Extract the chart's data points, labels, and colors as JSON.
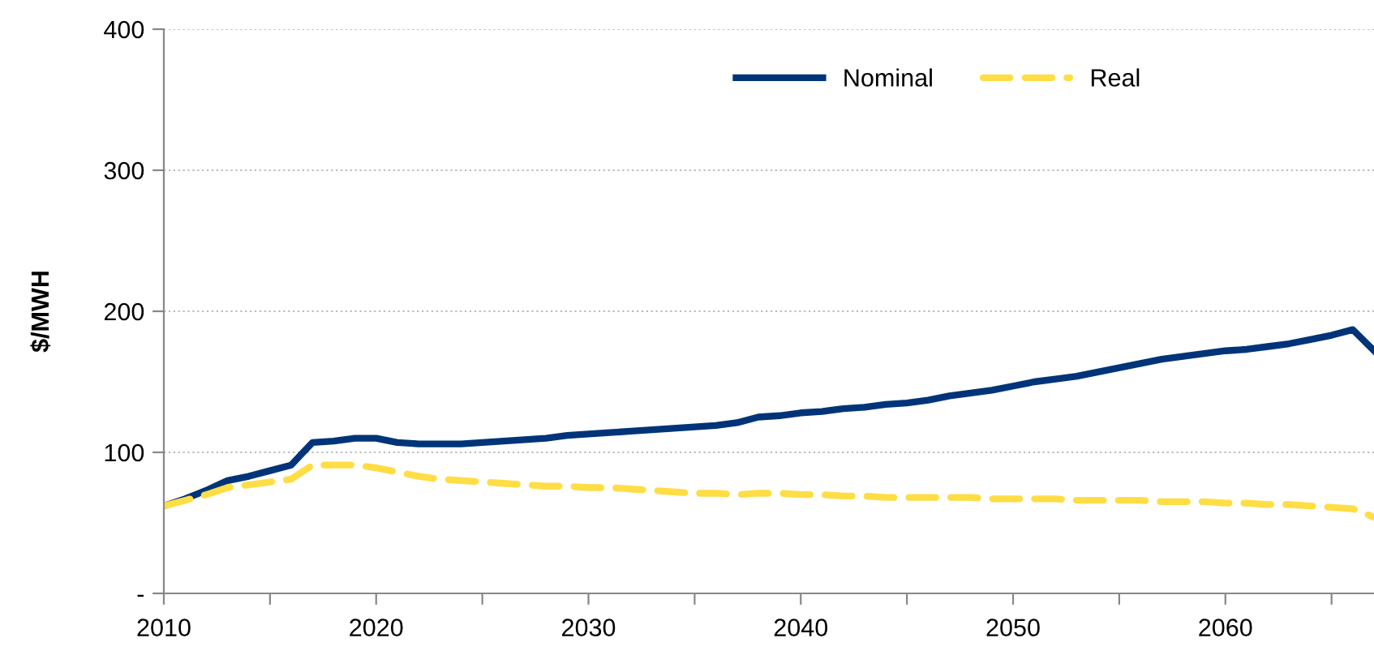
{
  "chart_data": {
    "type": "line",
    "ylabel": "$/MWH",
    "x": [
      2010,
      2011,
      2012,
      2013,
      2014,
      2015,
      2016,
      2017,
      2018,
      2019,
      2020,
      2021,
      2022,
      2023,
      2024,
      2025,
      2026,
      2027,
      2028,
      2029,
      2030,
      2031,
      2032,
      2033,
      2034,
      2035,
      2036,
      2037,
      2038,
      2039,
      2040,
      2041,
      2042,
      2043,
      2044,
      2045,
      2046,
      2047,
      2048,
      2049,
      2050,
      2051,
      2052,
      2053,
      2054,
      2055,
      2056,
      2057,
      2058,
      2059,
      2060,
      2061,
      2062,
      2063,
      2064,
      2065,
      2066,
      2067
    ],
    "series": [
      {
        "name": "Nominal",
        "color": "#003478",
        "line_style": "solid",
        "values": [
          62,
          67,
          73,
          80,
          83,
          87,
          91,
          107,
          108,
          110,
          110,
          107,
          106,
          106,
          106,
          107,
          108,
          109,
          110,
          112,
          113,
          114,
          115,
          116,
          117,
          118,
          119,
          121,
          125,
          126,
          128,
          129,
          131,
          132,
          134,
          135,
          137,
          140,
          142,
          144,
          147,
          150,
          152,
          154,
          157,
          160,
          163,
          166,
          168,
          170,
          172,
          173,
          175,
          177,
          180,
          183,
          187,
          172
        ]
      },
      {
        "name": "Real",
        "color": "#ffdd44",
        "line_style": "dashed",
        "values": [
          62,
          66,
          70,
          75,
          77,
          79,
          81,
          91,
          91,
          91,
          89,
          86,
          83,
          81,
          80,
          79,
          78,
          77,
          76,
          76,
          75,
          75,
          74,
          73,
          72,
          71,
          71,
          70,
          71,
          71,
          70,
          70,
          69,
          69,
          68,
          68,
          68,
          68,
          68,
          67,
          67,
          67,
          67,
          66,
          66,
          66,
          66,
          65,
          65,
          65,
          64,
          64,
          63,
          63,
          62,
          61,
          60,
          54
        ]
      }
    ],
    "xlim": [
      2010,
      2067
    ],
    "xticks": [
      2010,
      {
        "value": 2015,
        "label": null
      },
      2020,
      {
        "value": 2025,
        "label": null
      },
      2030,
      {
        "value": 2035,
        "label": null
      },
      2040,
      {
        "value": 2045,
        "label": null
      },
      2050,
      {
        "value": 2055,
        "label": null
      },
      2060,
      {
        "value": 2065,
        "label": null
      }
    ],
    "ylim": [
      0,
      400
    ],
    "yticks": [
      {
        "value": 0,
        "label": "-"
      },
      100,
      200,
      300,
      400
    ],
    "grid": "y",
    "legend": "top right",
    "marker": "none"
  }
}
